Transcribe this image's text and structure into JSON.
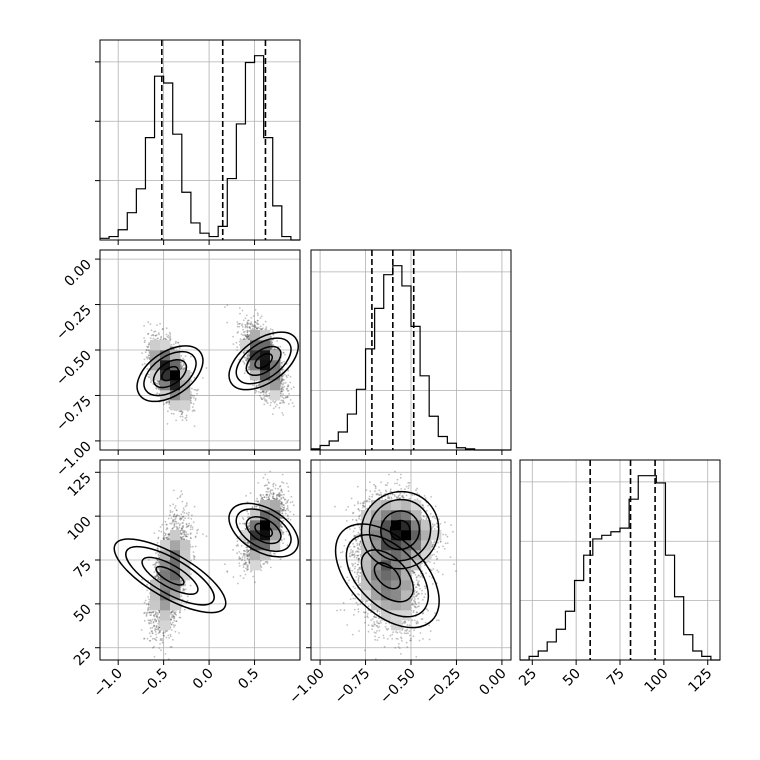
{
  "chart_data": {
    "type": "corner",
    "grid": true,
    "colors": {
      "line": "#000000",
      "grid": "#b0b0b0",
      "points": "#4d4d4d",
      "density_dark": "#000000",
      "background": "#ffffff"
    },
    "parameters": [
      {
        "range": [
          -1.2,
          1.0
        ],
        "ticks": [
          -1.0,
          -0.5,
          0.0,
          0.5
        ],
        "tick_labels": [
          "−1.0",
          "−0.5",
          "0.0",
          "0.5"
        ],
        "quantiles": [
          -0.52,
          0.15,
          0.62
        ],
        "hist_edges": [
          -1.2,
          -1.1,
          -1.0,
          -0.9,
          -0.8,
          -0.7,
          -0.6,
          -0.5,
          -0.4,
          -0.3,
          -0.2,
          -0.1,
          0.0,
          0.1,
          0.2,
          0.3,
          0.4,
          0.5,
          0.6,
          0.7,
          0.8,
          0.9,
          1.0
        ],
        "hist_counts": [
          0.5,
          1,
          3,
          8,
          15,
          30,
          48,
          46,
          31,
          14,
          5,
          2,
          1,
          4,
          18,
          34,
          52,
          54,
          30,
          10,
          1,
          0
        ]
      },
      {
        "range": [
          -1.05,
          0.05
        ],
        "ticks": [
          0.0,
          -0.25,
          -0.5,
          -0.75,
          -1.0
        ],
        "tick_labels": [
          "0.00",
          "−0.25",
          "−0.50",
          "−0.75",
          "−1.00"
        ],
        "quantiles": [
          -0.715,
          -0.6,
          -0.485
        ],
        "hist_edges": [
          -1.05,
          -1.0,
          -0.95,
          -0.9,
          -0.85,
          -0.8,
          -0.75,
          -0.7,
          -0.65,
          -0.6,
          -0.55,
          -0.5,
          -0.45,
          -0.4,
          -0.35,
          -0.3,
          -0.25,
          -0.2,
          -0.15,
          -0.1,
          -0.05,
          0.0,
          0.05
        ],
        "hist_counts": [
          0.5,
          2,
          4,
          8,
          16,
          27,
          45,
          63,
          78,
          82,
          73,
          55,
          33,
          15,
          6,
          3,
          1,
          0.5,
          0,
          0,
          0,
          0
        ]
      },
      {
        "range": [
          18,
          132
        ],
        "ticks": [
          25,
          50,
          75,
          100,
          125
        ],
        "tick_labels": [
          "25",
          "50",
          "75",
          "100",
          "125"
        ],
        "quantiles": [
          58,
          81,
          95
        ],
        "hist_edges": [
          18,
          23.2,
          28.4,
          33.5,
          38.7,
          43.9,
          49.1,
          54.3,
          59.5,
          64.6,
          69.8,
          75.0,
          80.2,
          85.4,
          90.5,
          95.7,
          100.9,
          106.1,
          111.3,
          116.5,
          121.6,
          126.8,
          132
        ],
        "hist_counts": [
          0,
          2,
          5,
          10,
          17,
          27,
          44,
          58,
          67,
          69,
          71,
          73,
          89,
          102,
          102,
          98,
          58,
          35,
          14,
          5,
          2,
          0
        ]
      }
    ],
    "modes": [
      {
        "p0": -0.43,
        "p1": -0.63,
        "p2": 66,
        "s0": 0.1,
        "s1": 0.085,
        "s2": 15,
        "w": 0.5
      },
      {
        "p0": 0.6,
        "p1": -0.56,
        "p2": 92,
        "s0": 0.1,
        "s1": 0.09,
        "s2": 9,
        "w": 0.5
      }
    ]
  }
}
